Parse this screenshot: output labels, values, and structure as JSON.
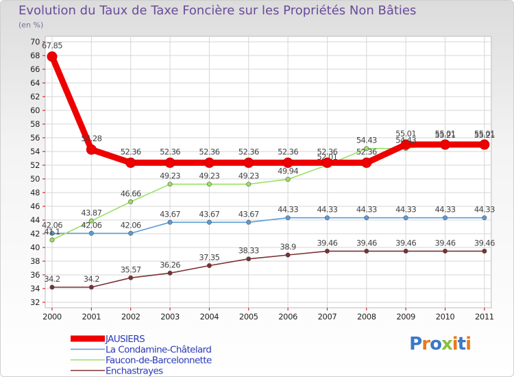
{
  "chart_data": {
    "type": "line",
    "title": "Evolution du Taux de Taxe Foncière sur les Propriétés Non Bâties",
    "unit": "(en %)",
    "x": [
      "2000",
      "2001",
      "2002",
      "2003",
      "2004",
      "2005",
      "2006",
      "2007",
      "2008",
      "2009",
      "2010",
      "2011"
    ],
    "ylim": [
      32,
      70
    ],
    "yticks": [
      32,
      34,
      36,
      38,
      40,
      42,
      44,
      46,
      48,
      50,
      52,
      54,
      56,
      58,
      60,
      62,
      64,
      66,
      68,
      70
    ],
    "series": [
      {
        "name": "JAUSIERS",
        "color": "#ee0000",
        "values": [
          67.85,
          54.28,
          52.36,
          52.36,
          52.36,
          52.36,
          52.36,
          52.36,
          52.36,
          55.01,
          55.01,
          55.01
        ],
        "labels": [
          "67.85",
          "54.28",
          "52.36",
          "52.36",
          "52.36",
          "52.36",
          "52.36",
          "52.36",
          "52.36",
          "55.01",
          "55.01",
          "55.01"
        ]
      },
      {
        "name": "La Condamine-Châtelard",
        "color": "#5b9bd5",
        "values": [
          42.06,
          42.06,
          42.06,
          43.67,
          43.67,
          43.67,
          44.33,
          44.33,
          44.33,
          44.33,
          44.33,
          44.33
        ],
        "labels": [
          "42.06",
          "42.06",
          "42.06",
          "43.67",
          "43.67",
          "43.67",
          "44.33",
          "44.33",
          "44.33",
          "44.33",
          "44.33",
          "44.33"
        ]
      },
      {
        "name": "Faucon-de-Barcelonnette",
        "color": "#99e060",
        "values": [
          41.1,
          43.87,
          46.66,
          49.23,
          49.23,
          49.23,
          49.94,
          52.01,
          54.43,
          54.43,
          55.21,
          55.21
        ],
        "labels": [
          "41.1",
          "43.87",
          "46.66",
          "49.23",
          "49.23",
          "49.23",
          "49.94",
          "52.01",
          "54.43",
          "54.43",
          "55.21",
          "55.21"
        ]
      },
      {
        "name": "Enchastrayes",
        "color": "#7a3030",
        "values": [
          34.2,
          34.2,
          35.57,
          36.26,
          37.35,
          38.33,
          38.9,
          39.46,
          39.46,
          39.46,
          39.46,
          39.46
        ],
        "labels": [
          "34.2",
          "34.2",
          "35.57",
          "36.26",
          "37.35",
          "38.33",
          "38.9",
          "39.46",
          "39.46",
          "39.46",
          "39.46",
          "39.46"
        ]
      }
    ]
  },
  "logo": {
    "text": "Proxiti"
  }
}
